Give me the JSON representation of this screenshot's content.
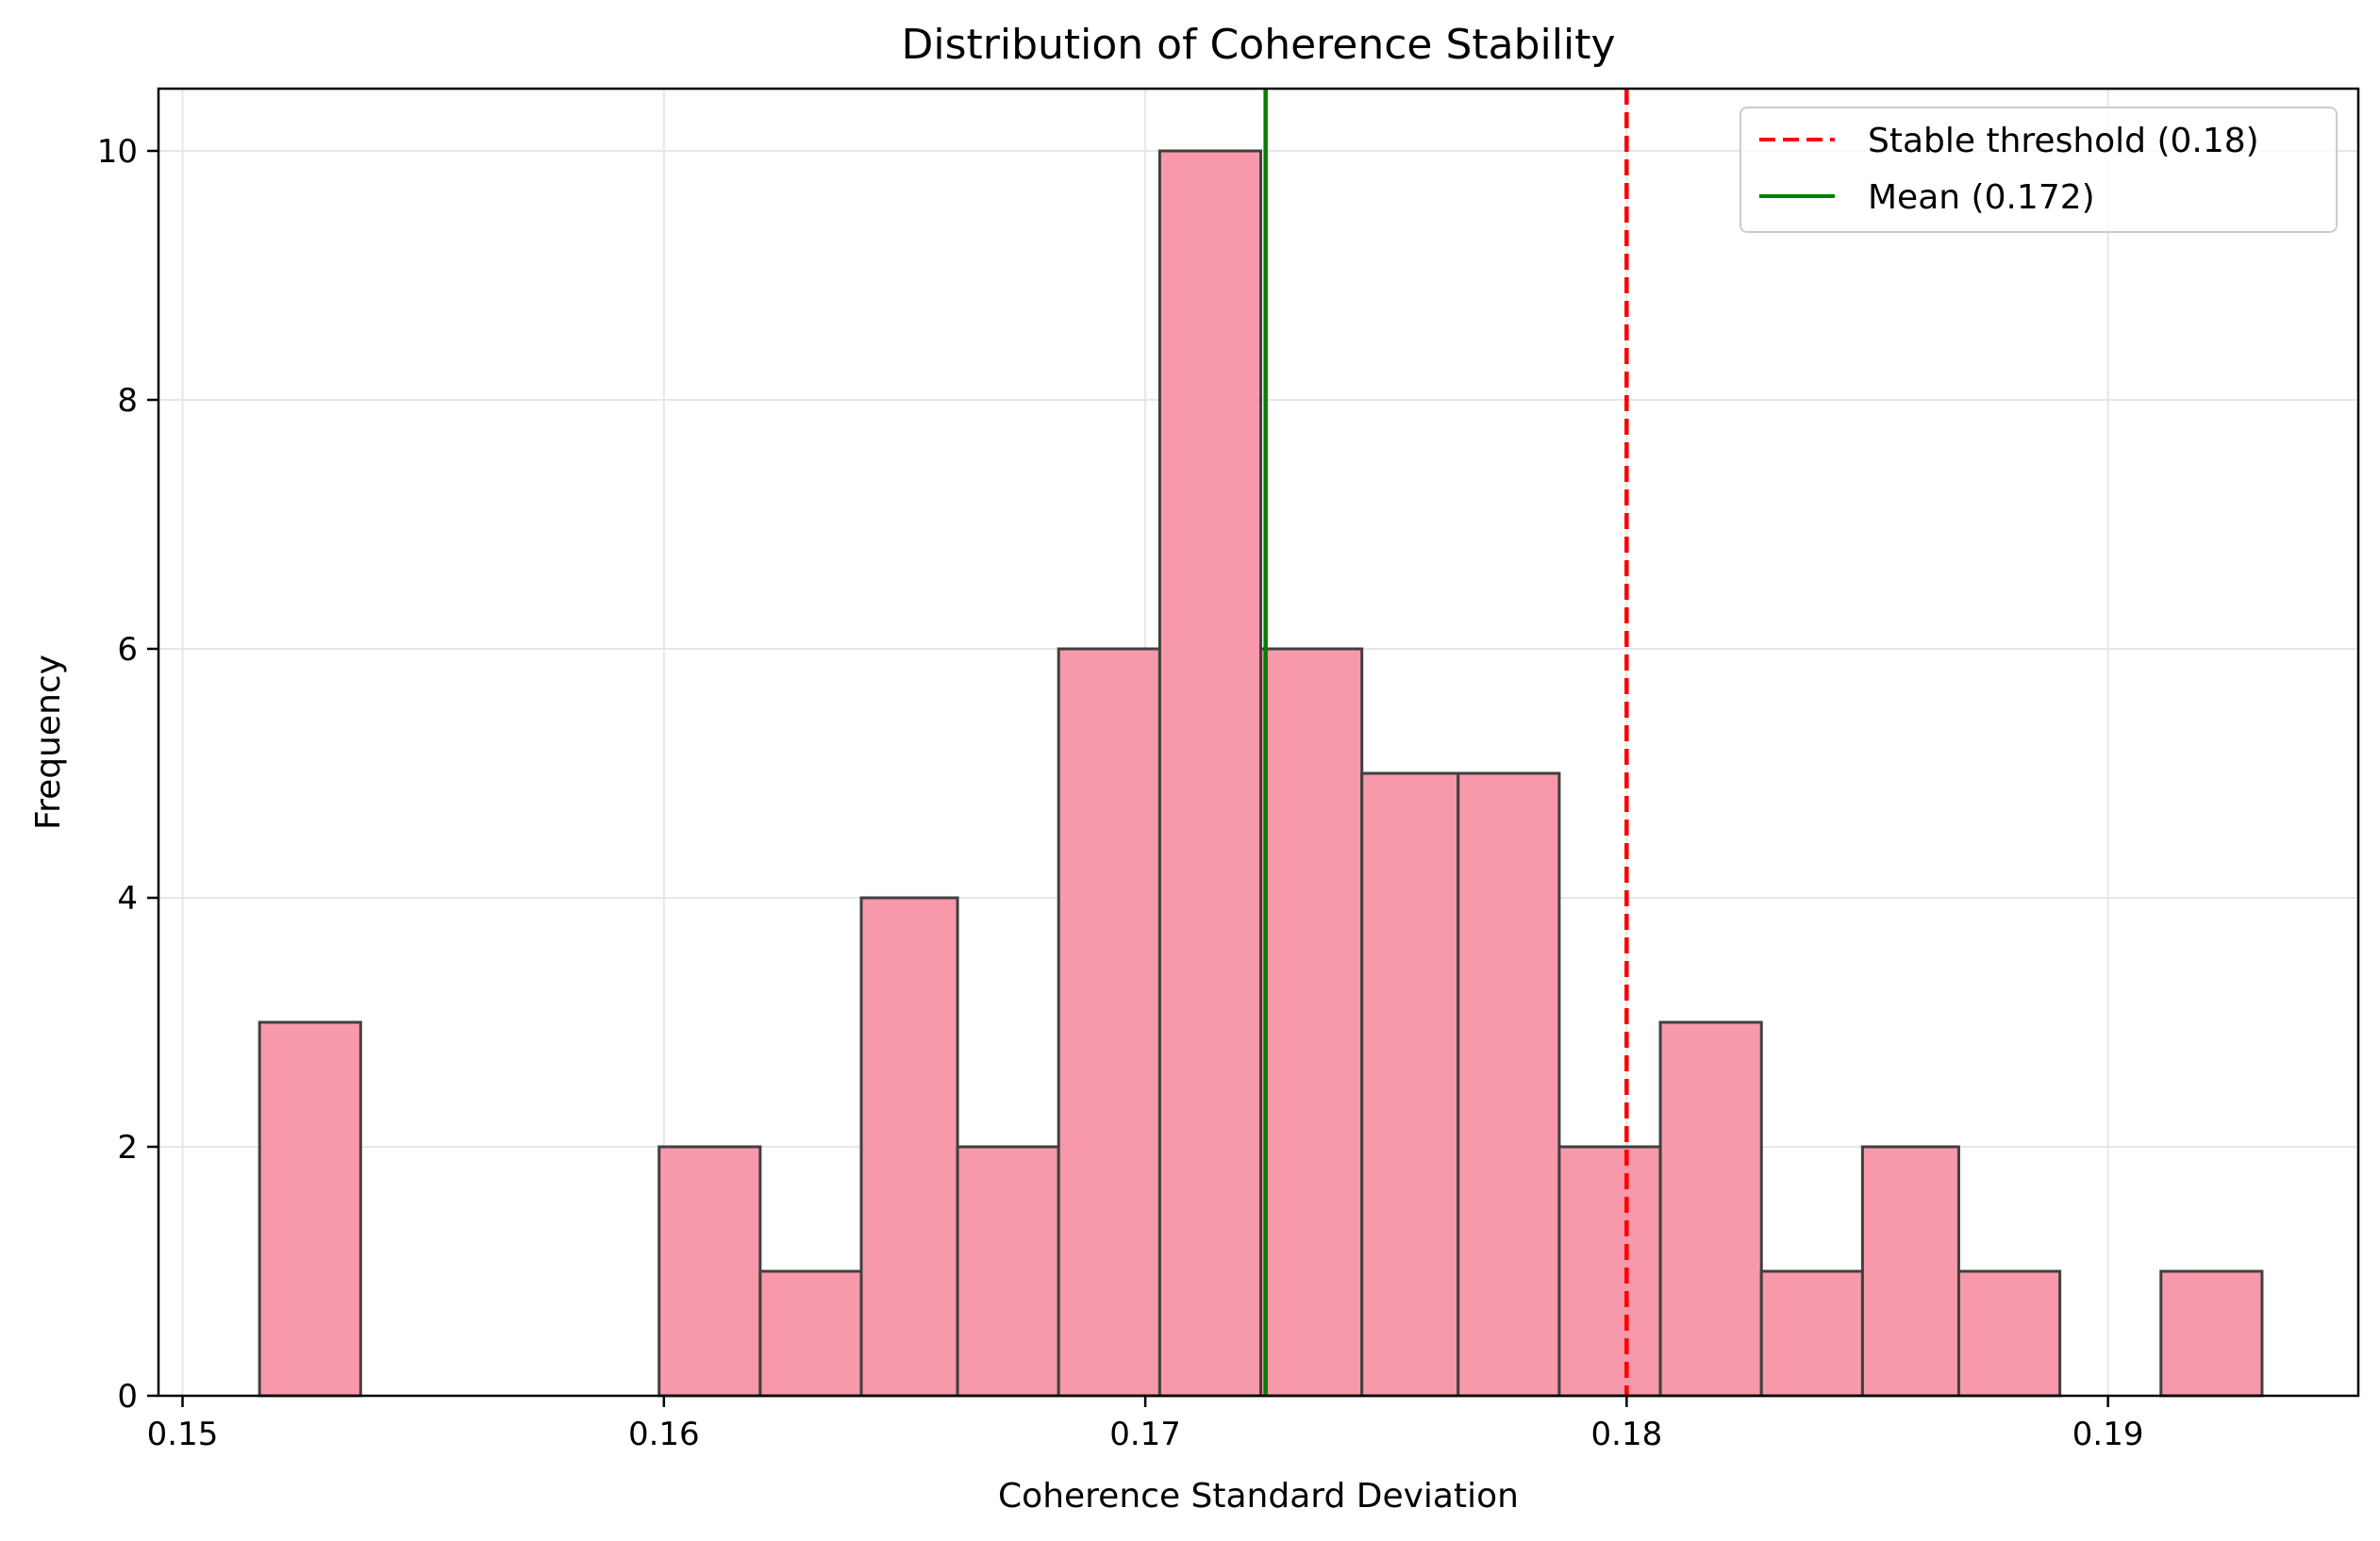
{
  "chart_data": {
    "type": "bar",
    "subtype": "histogram",
    "title": "Distribution of Coherence Stability",
    "xlabel": "Coherence Standard Deviation",
    "ylabel": "Frequency",
    "xlim": [
      0.1495,
      0.1952
    ],
    "ylim": [
      0,
      10.5
    ],
    "xticks": [
      "0.15",
      "0.16",
      "0.17",
      "0.18",
      "0.19"
    ],
    "xtick_values": [
      0.15,
      0.16,
      0.17,
      0.18,
      0.19
    ],
    "yticks": [
      "0",
      "2",
      "4",
      "6",
      "8",
      "10"
    ],
    "ytick_values": [
      0,
      2,
      4,
      6,
      8,
      10
    ],
    "bins": [
      {
        "x0": 0.1516,
        "x1": 0.1537,
        "count": 3
      },
      {
        "x0": 0.1537,
        "x1": 0.1557,
        "count": 0
      },
      {
        "x0": 0.1557,
        "x1": 0.1578,
        "count": 0
      },
      {
        "x0": 0.1578,
        "x1": 0.1599,
        "count": 0
      },
      {
        "x0": 0.1599,
        "x1": 0.162,
        "count": 2
      },
      {
        "x0": 0.162,
        "x1": 0.1641,
        "count": 1
      },
      {
        "x0": 0.1641,
        "x1": 0.1661,
        "count": 4
      },
      {
        "x0": 0.1661,
        "x1": 0.1682,
        "count": 2
      },
      {
        "x0": 0.1682,
        "x1": 0.1703,
        "count": 6
      },
      {
        "x0": 0.1703,
        "x1": 0.1724,
        "count": 10
      },
      {
        "x0": 0.1724,
        "x1": 0.1745,
        "count": 6
      },
      {
        "x0": 0.1745,
        "x1": 0.1765,
        "count": 5
      },
      {
        "x0": 0.1765,
        "x1": 0.1786,
        "count": 5
      },
      {
        "x0": 0.1786,
        "x1": 0.1807,
        "count": 2
      },
      {
        "x0": 0.1807,
        "x1": 0.1828,
        "count": 3
      },
      {
        "x0": 0.1828,
        "x1": 0.1849,
        "count": 1
      },
      {
        "x0": 0.1849,
        "x1": 0.1869,
        "count": 2
      },
      {
        "x0": 0.1869,
        "x1": 0.189,
        "count": 1
      },
      {
        "x0": 0.189,
        "x1": 0.1911,
        "count": 0
      },
      {
        "x0": 0.1911,
        "x1": 0.1932,
        "count": 1
      }
    ],
    "vlines": [
      {
        "name": "Stable threshold (0.18)",
        "x": 0.18,
        "style": "dashed",
        "color": "#ff0000"
      },
      {
        "name": "Mean (0.172)",
        "x": 0.1725,
        "style": "solid",
        "color": "#008000"
      }
    ],
    "legend_position": "top-right",
    "grid": true,
    "bar_color": "#f799aa",
    "bar_edge_color": "#404040"
  }
}
